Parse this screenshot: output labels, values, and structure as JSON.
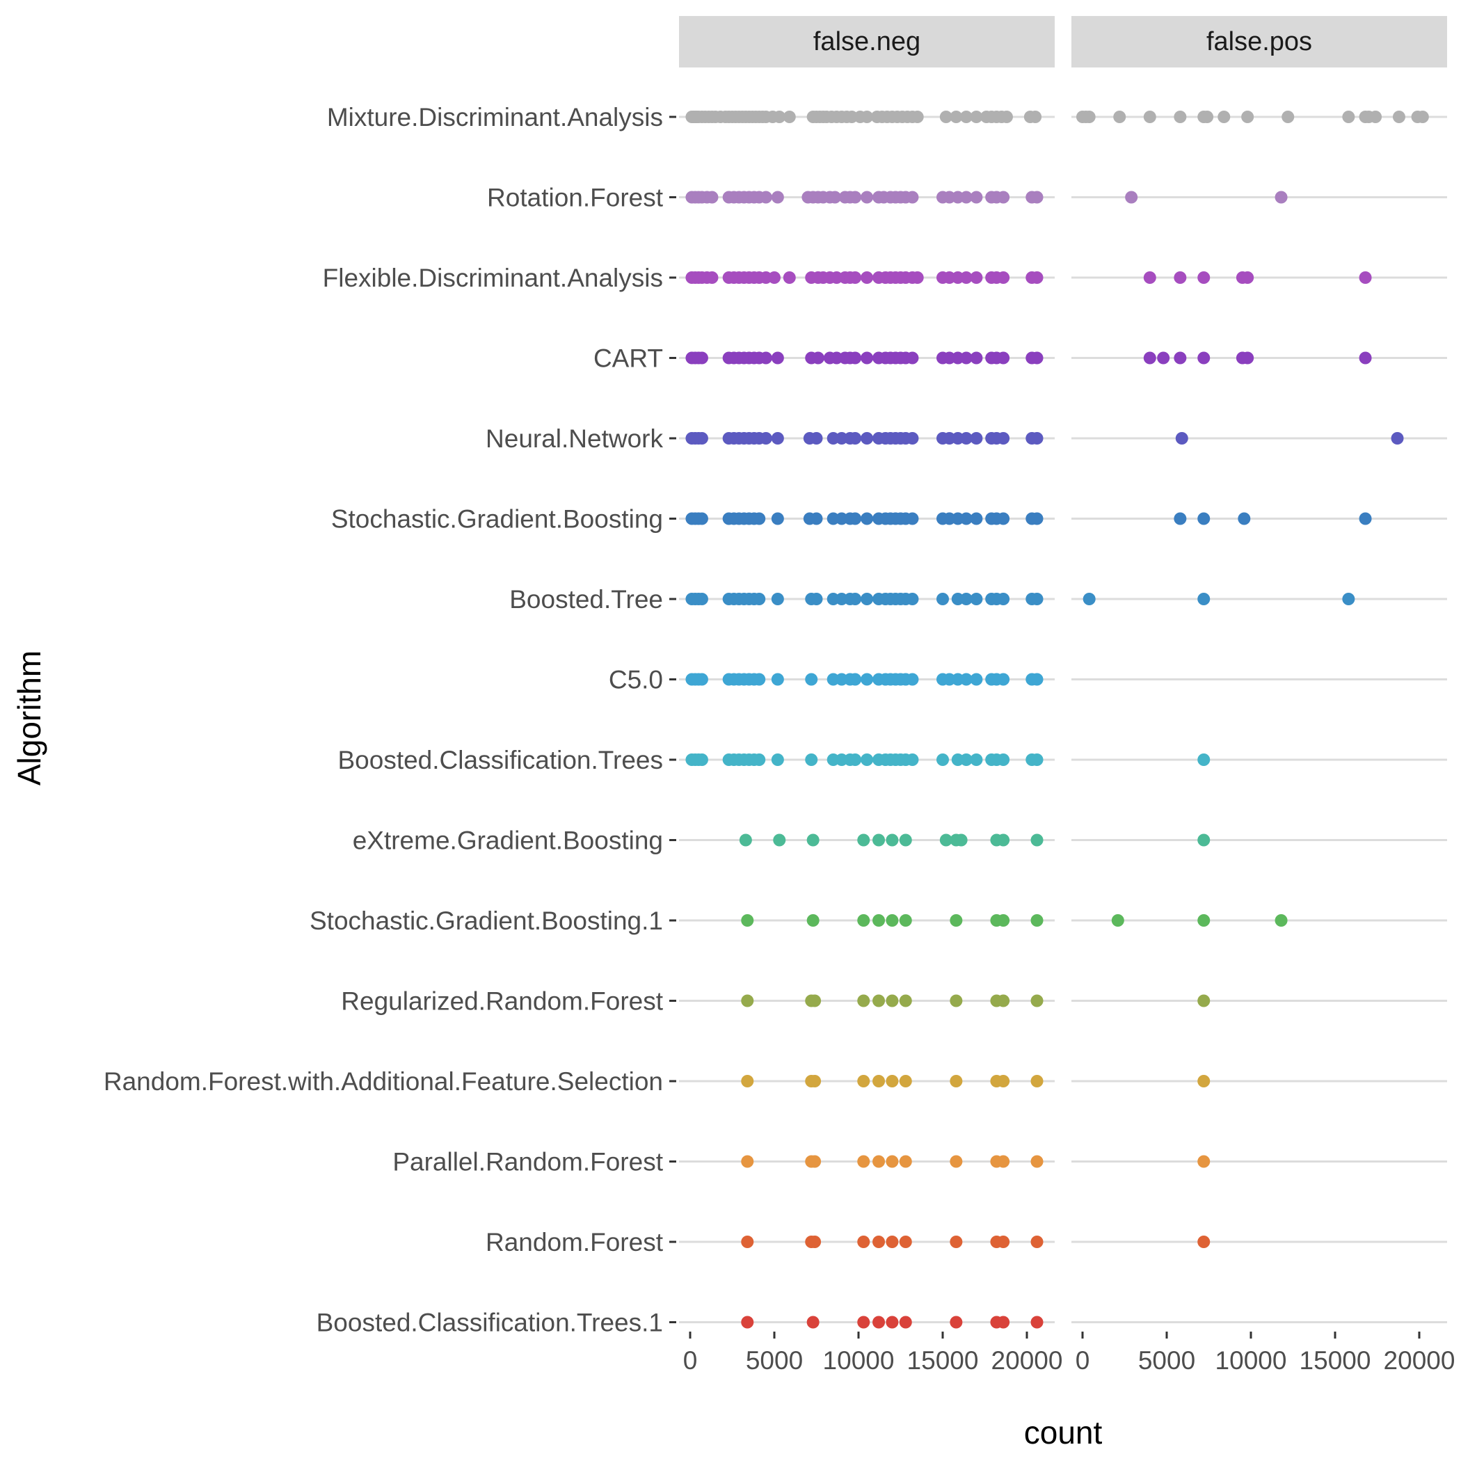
{
  "chart_data": {
    "type": "scatter",
    "xlabel": "count",
    "ylabel": "Algorithm",
    "xlim": [
      0,
      21500
    ],
    "x_ticks": [
      0,
      5000,
      10000,
      15000,
      20000
    ],
    "x_tick_labels": [
      "0",
      "5000",
      "10000",
      "15000",
      "20000"
    ],
    "facets": [
      "false.neg",
      "false.pos"
    ],
    "grid": "horizontal-major",
    "legend": "none",
    "categories": [
      "Mixture.Discriminant.Analysis",
      "Rotation.Forest",
      "Flexible.Discriminant.Analysis",
      "CART",
      "Neural.Network",
      "Stochastic.Gradient.Boosting",
      "Boosted.Tree",
      "C5.0",
      "Boosted.Classification.Trees",
      "eXtreme.Gradient.Boosting",
      "Stochastic.Gradient.Boosting.1",
      "Regularized.Random.Forest",
      "Random.Forest.with.Additional.Feature.Selection",
      "Parallel.Random.Forest",
      "Random.Forest",
      "Boosted.Classification.Trees.1"
    ],
    "series": [
      {
        "category": "Mixture.Discriminant.Analysis",
        "color": "#b0b0b0",
        "false_neg": [
          100,
          200,
          300,
          400,
          500,
          700,
          900,
          1100,
          1300,
          1500,
          1800,
          2100,
          2300,
          2500,
          2700,
          2900,
          3100,
          3300,
          3500,
          3700,
          3900,
          4100,
          4300,
          4500,
          4900,
          5300,
          5900,
          7300,
          7500,
          7700,
          7900,
          8100,
          8400,
          8700,
          9000,
          9300,
          9600,
          10100,
          10500,
          11100,
          11400,
          11700,
          12000,
          12300,
          12600,
          12900,
          13200,
          13500,
          15200,
          15800,
          16400,
          17000,
          17600,
          17900,
          18200,
          18500,
          18800,
          20200,
          20500
        ],
        "false_pos": [
          0,
          200,
          400,
          2200,
          4000,
          5800,
          7200,
          7400,
          8400,
          9800,
          12200,
          15800,
          16800,
          17000,
          17400,
          18800,
          19900,
          20200
        ]
      },
      {
        "category": "Rotation.Forest",
        "color": "#a97fbf",
        "false_neg": [
          100,
          300,
          500,
          700,
          1000,
          1300,
          2300,
          2600,
          2900,
          3200,
          3500,
          3800,
          4100,
          4500,
          5200,
          7000,
          7300,
          7600,
          7900,
          8300,
          8600,
          9200,
          9500,
          9800,
          10500,
          11200,
          11500,
          11900,
          12200,
          12500,
          12800,
          13200,
          15000,
          15400,
          15900,
          16400,
          17000,
          17900,
          18200,
          18600,
          20300,
          20600
        ],
        "false_pos": [
          2900,
          11800
        ]
      },
      {
        "category": "Flexible.Discriminant.Analysis",
        "color": "#a64dbf",
        "false_neg": [
          100,
          300,
          500,
          700,
          1000,
          1300,
          2300,
          2600,
          2900,
          3200,
          3500,
          3800,
          4100,
          4500,
          5000,
          5900,
          7200,
          7600,
          7900,
          8300,
          8700,
          9200,
          9500,
          9800,
          10500,
          11200,
          11600,
          11900,
          12200,
          12500,
          12800,
          13200,
          13500,
          15000,
          15400,
          15900,
          16400,
          17000,
          17900,
          18200,
          18600,
          20300,
          20600
        ],
        "false_pos": [
          4000,
          5800,
          7200,
          9500,
          9800,
          16800
        ]
      },
      {
        "category": "CART",
        "color": "#8a3fbe",
        "false_neg": [
          100,
          300,
          500,
          700,
          2300,
          2600,
          2900,
          3200,
          3500,
          3800,
          4100,
          4500,
          5200,
          7200,
          7600,
          8300,
          8700,
          9200,
          9500,
          9800,
          10500,
          11200,
          11600,
          11900,
          12200,
          12500,
          12800,
          13200,
          15000,
          15400,
          15900,
          16400,
          17000,
          17900,
          18200,
          18600,
          20300,
          20600
        ],
        "false_pos": [
          4000,
          4800,
          5800,
          7200,
          9500,
          9800,
          16800
        ]
      },
      {
        "category": "Neural.Network",
        "color": "#5c5ac0",
        "false_neg": [
          100,
          300,
          500,
          700,
          2300,
          2600,
          2900,
          3200,
          3500,
          3800,
          4100,
          4500,
          5200,
          7100,
          7500,
          8500,
          9000,
          9500,
          9800,
          10500,
          11200,
          11600,
          11900,
          12200,
          12500,
          12800,
          13200,
          15000,
          15400,
          15900,
          16400,
          17000,
          17900,
          18200,
          18600,
          20300,
          20600
        ],
        "false_pos": [
          5900,
          18700
        ]
      },
      {
        "category": "Stochastic.Gradient.Boosting",
        "color": "#3a7ec0",
        "false_neg": [
          100,
          300,
          500,
          700,
          2300,
          2600,
          2900,
          3200,
          3500,
          3800,
          4100,
          5200,
          7100,
          7500,
          8500,
          9000,
          9500,
          9800,
          10500,
          11200,
          11600,
          11900,
          12200,
          12500,
          12800,
          13200,
          15000,
          15400,
          15900,
          16400,
          17000,
          17900,
          18200,
          18600,
          20300,
          20600
        ],
        "false_pos": [
          5800,
          7200,
          9600,
          16800
        ]
      },
      {
        "category": "Boosted.Tree",
        "color": "#3a8ec6",
        "false_neg": [
          100,
          300,
          500,
          700,
          2300,
          2600,
          2900,
          3200,
          3500,
          3800,
          4100,
          5200,
          7200,
          7500,
          8500,
          9000,
          9500,
          9800,
          10500,
          11200,
          11600,
          11900,
          12200,
          12500,
          12800,
          13200,
          15000,
          15900,
          16400,
          17000,
          17900,
          18200,
          18600,
          20300,
          20600
        ],
        "false_pos": [
          400,
          7200,
          15800
        ]
      },
      {
        "category": "C5.0",
        "color": "#3ea6d4",
        "false_neg": [
          100,
          300,
          500,
          700,
          2300,
          2600,
          2900,
          3200,
          3500,
          3800,
          4100,
          5200,
          7200,
          8500,
          9000,
          9500,
          9800,
          10500,
          11200,
          11600,
          11900,
          12200,
          12500,
          12800,
          13200,
          15000,
          15400,
          15900,
          16400,
          17000,
          17900,
          18200,
          18600,
          20300,
          20600
        ],
        "false_pos": []
      },
      {
        "category": "Boosted.Classification.Trees",
        "color": "#44b4c8",
        "false_neg": [
          100,
          300,
          500,
          700,
          2300,
          2600,
          2900,
          3200,
          3500,
          3800,
          4100,
          5200,
          7200,
          8500,
          9000,
          9500,
          9800,
          10500,
          11200,
          11600,
          11900,
          12200,
          12500,
          12800,
          13200,
          15000,
          15900,
          16400,
          17000,
          17900,
          18200,
          18600,
          20300,
          20600
        ],
        "false_pos": [
          7200
        ]
      },
      {
        "category": "eXtreme.Gradient.Boosting",
        "color": "#4cba96",
        "false_neg": [
          3300,
          5300,
          7300,
          10300,
          11200,
          12000,
          12800,
          15200,
          15800,
          16100,
          18200,
          18600,
          20600
        ],
        "false_pos": [
          7200
        ]
      },
      {
        "category": "Stochastic.Gradient.Boosting.1",
        "color": "#5cb85c",
        "false_neg": [
          3400,
          7300,
          10300,
          11200,
          12000,
          12800,
          15800,
          18200,
          18600,
          20600
        ],
        "false_pos": [
          2100,
          7200,
          11800
        ]
      },
      {
        "category": "Regularized.Random.Forest",
        "color": "#95aa4c",
        "false_neg": [
          3400,
          7200,
          7400,
          10300,
          11200,
          12000,
          12800,
          15800,
          18200,
          18600,
          20600
        ],
        "false_pos": [
          7200
        ]
      },
      {
        "category": "Random.Forest.with.Additional.Feature.Selection",
        "color": "#d2a63e",
        "false_neg": [
          3400,
          7200,
          7400,
          10300,
          11200,
          12000,
          12800,
          15800,
          18200,
          18600,
          20600
        ],
        "false_pos": [
          7200
        ]
      },
      {
        "category": "Parallel.Random.Forest",
        "color": "#e69540",
        "false_neg": [
          3400,
          7200,
          7400,
          10300,
          11200,
          12000,
          12800,
          15800,
          18200,
          18600,
          20600
        ],
        "false_pos": [
          7200
        ]
      },
      {
        "category": "Random.Forest",
        "color": "#de6234",
        "false_neg": [
          3400,
          7200,
          7400,
          10300,
          11200,
          12000,
          12800,
          15800,
          18200,
          18600,
          20600
        ],
        "false_pos": [
          7200
        ]
      },
      {
        "category": "Boosted.Classification.Trees.1",
        "color": "#d9423a",
        "false_neg": [
          3400,
          7300,
          10300,
          11200,
          12000,
          12800,
          15800,
          18200,
          18600,
          20600
        ],
        "false_pos": []
      }
    ]
  }
}
